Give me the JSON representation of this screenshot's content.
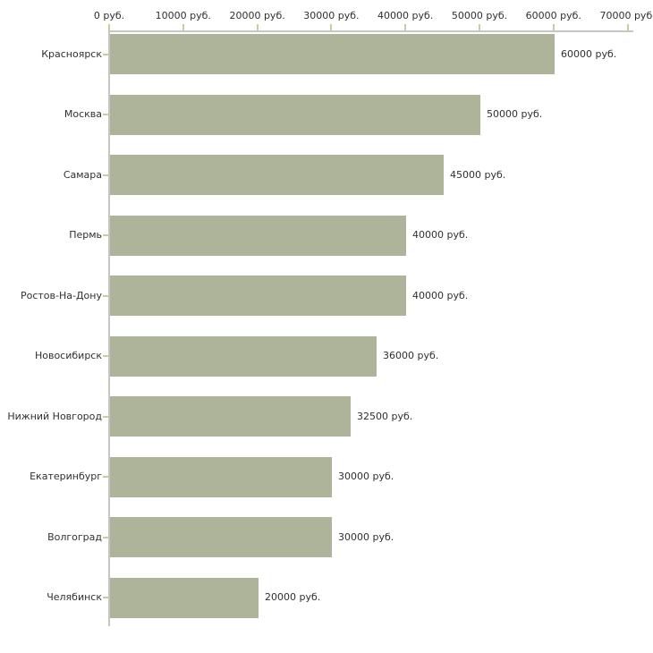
{
  "chart_data": {
    "type": "bar",
    "orientation": "horizontal",
    "title": "",
    "categories": [
      "Красноярск",
      "Москва",
      "Самара",
      "Пермь",
      "Ростов-На-Дону",
      "Новосибирск",
      "Нижний Новгород",
      "Екатеринбург",
      "Волгоград",
      "Челябинск"
    ],
    "values": [
      60000,
      50000,
      45000,
      40000,
      40000,
      36000,
      32500,
      30000,
      30000,
      20000
    ],
    "bar_labels": [
      "60000 руб.",
      "50000 руб.",
      "45000 руб.",
      "40000 руб.",
      "40000 руб.",
      "36000 руб.",
      "32500 руб.",
      "30000 руб.",
      "30000 руб.",
      "20000 руб."
    ],
    "x_axis": {
      "position": "top",
      "tick_values": [
        0,
        10000,
        20000,
        30000,
        40000,
        50000,
        60000,
        70000
      ],
      "tick_labels": [
        "0 руб.",
        "10000 руб.",
        "20000 руб.",
        "30000 руб.",
        "40000 руб.",
        "50000 руб.",
        "60000 руб.",
        "70000 руб."
      ]
    },
    "xlim": [
      0,
      70000
    ],
    "unit": "руб.",
    "grid": false,
    "legend": false,
    "colors": {
      "bar": "#adb49a",
      "axis_line": "#c6c6c6",
      "tick": "#cccc99",
      "text": "#303030",
      "background": "#ffffff"
    }
  }
}
